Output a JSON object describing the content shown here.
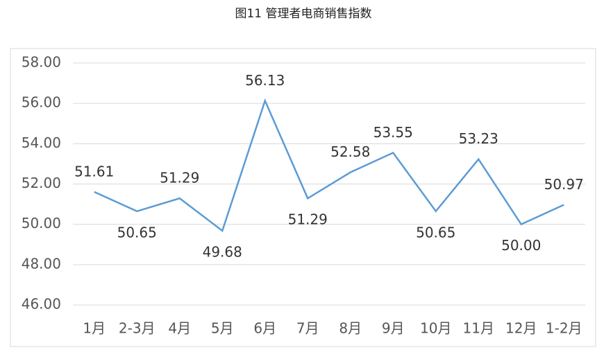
{
  "chart_data": {
    "type": "line",
    "title": "图11 管理者电商销售指数",
    "categories": [
      "1月",
      "2-3月",
      "4月",
      "5月",
      "6月",
      "7月",
      "8月",
      "9月",
      "10月",
      "11月",
      "12月",
      "1-2月"
    ],
    "series": [
      {
        "name": "管理者电商销售指数",
        "color": "#5b9bd5",
        "values": [
          51.61,
          50.65,
          51.29,
          49.68,
          56.13,
          51.29,
          52.58,
          53.55,
          50.65,
          53.23,
          50.0,
          50.97
        ],
        "value_labels": [
          "51.61",
          "50.65",
          "51.29",
          "49.68",
          "56.13",
          "51.29",
          "52.58",
          "53.55",
          "50.65",
          "53.23",
          "50.00",
          "50.97"
        ]
      }
    ],
    "ylim": [
      46,
      58
    ],
    "yticks": [
      {
        "value": 46,
        "label": "46.00"
      },
      {
        "value": 48,
        "label": "48.00"
      },
      {
        "value": 50,
        "label": "50.00"
      },
      {
        "value": 52,
        "label": "52.00"
      },
      {
        "value": 54,
        "label": "54.00"
      },
      {
        "value": 56,
        "label": "56.00"
      },
      {
        "value": 58,
        "label": "58.00"
      }
    ],
    "grid": true
  }
}
